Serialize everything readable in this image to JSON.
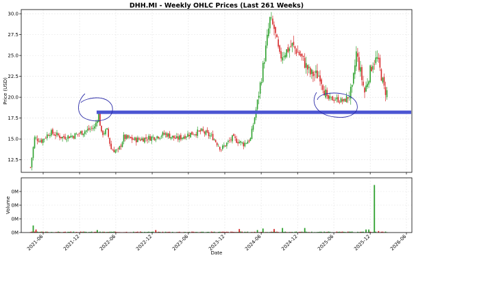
{
  "chart_data": [
    {
      "type": "candlestick",
      "title": "DHH.MI - Weekly OHLC Prices (Last 261 Weeks)",
      "ylabel": "Price (USD)",
      "ylim": [
        11.0,
        30.5
      ],
      "yticks": [
        "12.5",
        "15.0",
        "17.5",
        "20.0",
        "22.5",
        "25.0",
        "27.5",
        "30.0"
      ],
      "grid": true,
      "up_color": "#2ca02c",
      "down_color": "#d62728",
      "anchors": [
        [
          "2021-03-29",
          11.6
        ],
        [
          "2021-04-05",
          12.8
        ],
        [
          "2021-04-19",
          15.1
        ],
        [
          "2021-05-24",
          14.8
        ],
        [
          "2021-07-05",
          15.8
        ],
        [
          "2021-09-06",
          15.2
        ],
        [
          "2021-11-01",
          15.4
        ],
        [
          "2022-01-03",
          16.0
        ],
        [
          "2022-02-14",
          16.4
        ],
        [
          "2022-03-07",
          18.0
        ],
        [
          "2022-03-21",
          15.6
        ],
        [
          "2022-04-18",
          16.0
        ],
        [
          "2022-05-09",
          13.8
        ],
        [
          "2022-06-13",
          13.5
        ],
        [
          "2022-07-11",
          15.2
        ],
        [
          "2022-09-05",
          14.9
        ],
        [
          "2022-12-05",
          15.2
        ],
        [
          "2023-02-06",
          15.6
        ],
        [
          "2023-04-03",
          15.0
        ],
        [
          "2023-06-05",
          15.6
        ],
        [
          "2023-08-07",
          15.9
        ],
        [
          "2023-10-02",
          15.2
        ],
        [
          "2023-11-13",
          13.8
        ],
        [
          "2024-01-08",
          15.1
        ],
        [
          "2024-03-04",
          14.4
        ],
        [
          "2024-04-08",
          15.0
        ],
        [
          "2024-05-06",
          18.5
        ],
        [
          "2024-06-03",
          22.5
        ],
        [
          "2024-06-24",
          25.8
        ],
        [
          "2024-07-15",
          29.3
        ],
        [
          "2024-08-05",
          28.2
        ],
        [
          "2024-09-02",
          24.8
        ],
        [
          "2024-11-04",
          26.2
        ],
        [
          "2024-12-16",
          25.0
        ],
        [
          "2025-02-03",
          22.8
        ],
        [
          "2025-03-24",
          22.6
        ],
        [
          "2025-04-28",
          19.8
        ],
        [
          "2025-06-09",
          19.8
        ],
        [
          "2025-07-21",
          19.5
        ],
        [
          "2025-09-01",
          20.8
        ],
        [
          "2025-09-22",
          25.3
        ],
        [
          "2025-10-13",
          23.0
        ],
        [
          "2025-11-03",
          20.6
        ],
        [
          "2025-11-24",
          22.6
        ],
        [
          "2025-12-15",
          24.2
        ],
        [
          "2026-01-05",
          24.6
        ],
        [
          "2026-01-26",
          22.6
        ],
        [
          "2026-02-09",
          21.0
        ],
        [
          "2026-02-23",
          20.6
        ]
      ]
    },
    {
      "type": "bar",
      "ylabel": "Volume",
      "xlabel": "Date",
      "xticks": [
        "2021-06",
        "2021-12",
        "2022-06",
        "2022-12",
        "2023-06",
        "2023-12",
        "2024-06",
        "2024-12",
        "2025-06",
        "2025-12",
        "2026-06"
      ],
      "yticks": [
        "0M",
        "0M",
        "0M",
        "0M"
      ],
      "ylim": [
        0,
        1
      ],
      "grid": true,
      "spikes": [
        [
          "2021-04-12",
          0.14
        ],
        [
          "2021-04-26",
          0.06
        ],
        [
          "2022-02-28",
          0.05
        ],
        [
          "2022-12-19",
          0.05
        ],
        [
          "2024-02-12",
          0.07
        ],
        [
          "2024-05-13",
          0.05
        ],
        [
          "2024-06-10",
          0.08
        ],
        [
          "2024-08-05",
          0.07
        ],
        [
          "2024-09-16",
          0.09
        ],
        [
          "2025-01-06",
          0.09
        ],
        [
          "2025-11-10",
          0.06
        ],
        [
          "2025-11-24",
          0.06
        ],
        [
          "2025-12-22",
          0.94
        ],
        [
          "2026-01-12",
          0.03
        ]
      ]
    }
  ],
  "annotations": {
    "hline_price": 18.2,
    "line_color": "#4b55d2",
    "circle_color": "#2b2ba8"
  }
}
